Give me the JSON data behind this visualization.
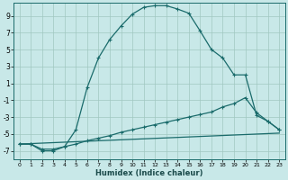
{
  "xlabel": "Humidex (Indice chaleur)",
  "bg_color": "#c8e8e8",
  "line_color": "#1a6b6b",
  "grid_color": "#a0c8c0",
  "xlim": [
    -0.5,
    23.5
  ],
  "ylim": [
    -8,
    10.5
  ],
  "xticks": [
    0,
    1,
    2,
    3,
    4,
    5,
    6,
    7,
    8,
    9,
    10,
    11,
    12,
    13,
    14,
    15,
    16,
    17,
    18,
    19,
    20,
    21,
    22,
    23
  ],
  "yticks": [
    -7,
    -5,
    -3,
    -1,
    1,
    3,
    5,
    7,
    9
  ],
  "line1_x": [
    0,
    1,
    2,
    3,
    4,
    5,
    6,
    7,
    8,
    9,
    10,
    11,
    12,
    13,
    14,
    15,
    16,
    17,
    18,
    19,
    20,
    21,
    22,
    23
  ],
  "line1_y": [
    -6.2,
    -6.2,
    -7.0,
    -7.0,
    -6.5,
    -4.5,
    0.5,
    4.0,
    6.2,
    7.8,
    9.2,
    10.0,
    10.2,
    10.2,
    9.8,
    9.3,
    7.2,
    5.0,
    4.0,
    2.0,
    2.0,
    -2.8,
    -3.5,
    -4.5
  ],
  "line2_x": [
    0,
    1,
    2,
    3,
    4,
    5,
    6,
    7,
    8,
    9,
    10,
    11,
    12,
    13,
    14,
    15,
    16,
    17,
    18,
    19,
    20,
    21,
    22,
    23
  ],
  "line2_y": [
    -6.2,
    -6.2,
    -6.8,
    -6.8,
    -6.5,
    -6.2,
    -5.8,
    -5.5,
    -5.2,
    -4.8,
    -4.5,
    -4.2,
    -3.9,
    -3.6,
    -3.3,
    -3.0,
    -2.7,
    -2.4,
    -1.8,
    -1.4,
    -0.7,
    -2.5,
    -3.5,
    -4.5
  ],
  "line3_x": [
    0,
    23
  ],
  "line3_y": [
    -6.2,
    -4.9
  ]
}
